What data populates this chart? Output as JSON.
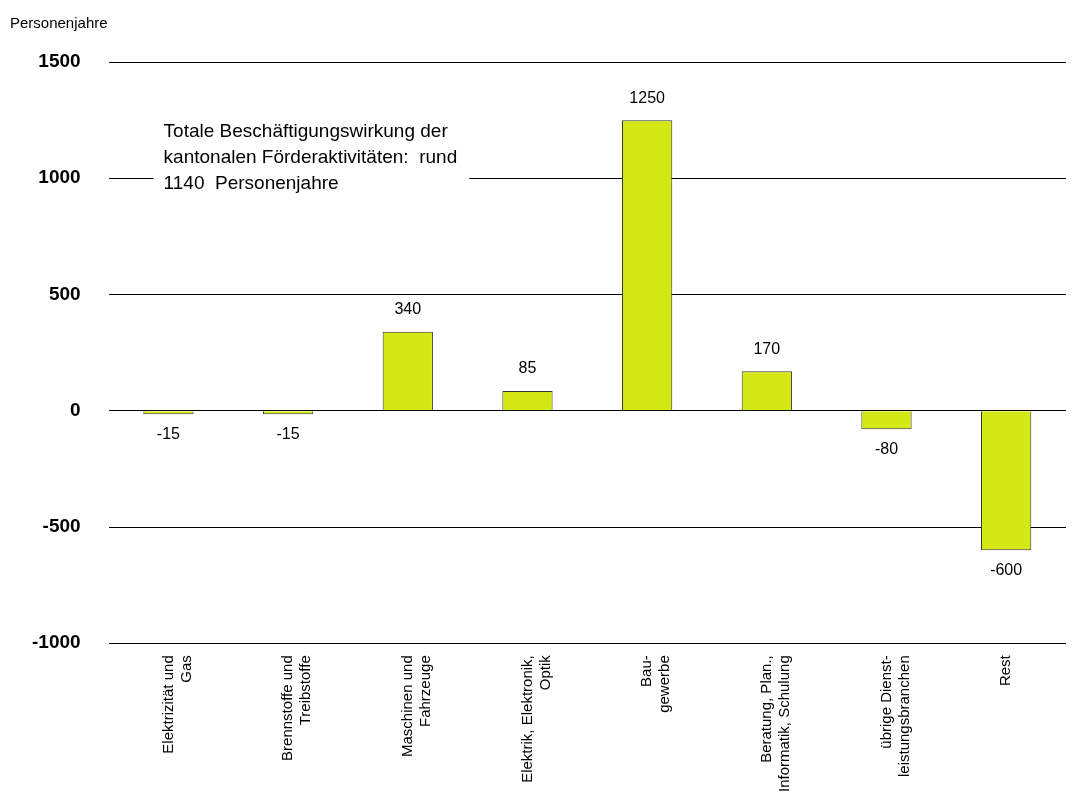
{
  "chart_data": {
    "type": "bar",
    "ylabel": "Personenjahre",
    "categories": [
      "Elektrizität und\nGas",
      "Brennstoffe und\nTreibstoffe",
      "Maschinen und\nFahrzeuge",
      "Elektrik, Elektronik,\nOptik",
      "Bau-\ngewerbe",
      "Beratung, Plan.,\nInformatik, Schulung",
      "übrige Dienst-\nleistungsbranchen",
      "Rest"
    ],
    "values": [
      -15,
      -15,
      340,
      85,
      1250,
      170,
      -80,
      -600
    ],
    "color": "#d4e815",
    "ylim": [
      -1000,
      1500
    ],
    "yticks": [
      -1000,
      -500,
      0,
      500,
      1000,
      1500
    ],
    "grid": "y",
    "legend": false,
    "data_labels": true,
    "annotations": [
      "Totale Beschäftigungswirkung der\nkantonalen Förderaktivitäten:  rund\n1140  Personenjahre"
    ]
  }
}
